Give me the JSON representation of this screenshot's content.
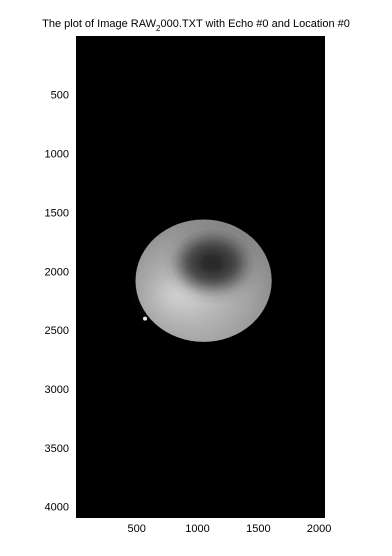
{
  "chart_data": {
    "type": "heatmap",
    "title_prefix": "The plot of Image RAW",
    "title_subscript": "2",
    "title_suffix": "000.TXT with Echo #0 and Location #0",
    "colormap": "gray",
    "background": "#000000",
    "xlim": [
      1,
      2048
    ],
    "ylim": [
      1,
      4096
    ],
    "y_direction": "reversed",
    "x_ticks": [
      500,
      1000,
      1500,
      2000
    ],
    "y_ticks": [
      500,
      1000,
      1500,
      2000,
      2500,
      3000,
      3500,
      4000
    ],
    "grid": false,
    "object": {
      "shape": "ellipse",
      "center": [
        1050,
        2080
      ],
      "radius_x": 560,
      "radius_y": 520,
      "fill_gray": "#9c9c9c",
      "dark_region_center": [
        1120,
        1930
      ],
      "bright_region_center": [
        830,
        2200
      ]
    }
  }
}
